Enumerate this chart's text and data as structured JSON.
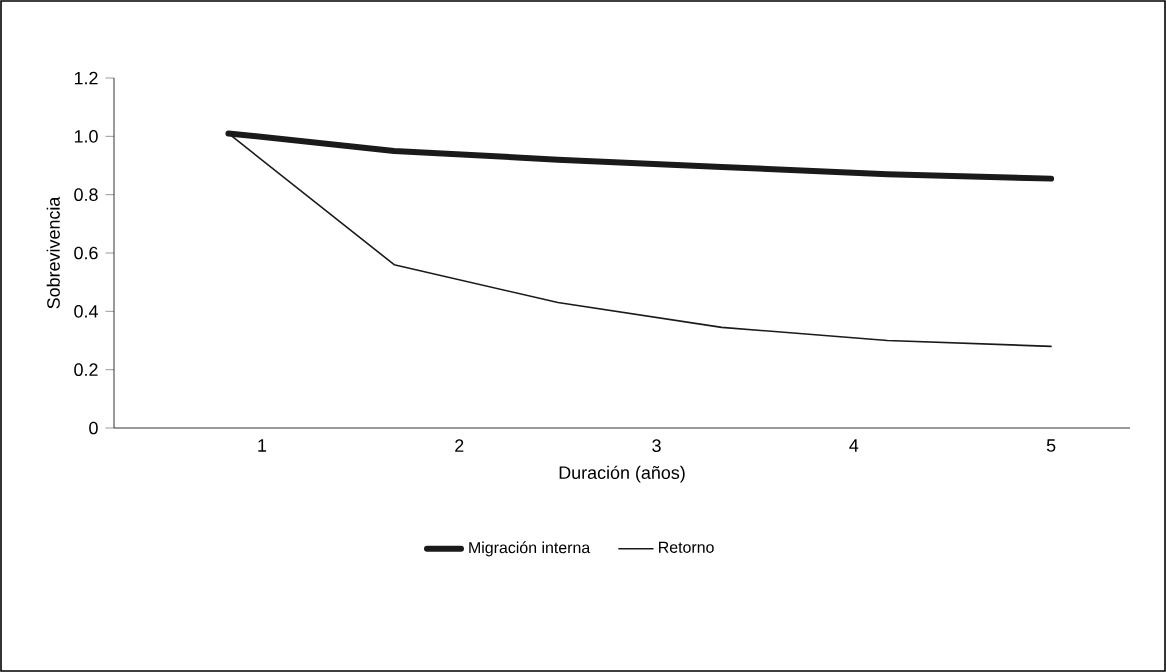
{
  "chart_data": {
    "type": "line",
    "xlabel": "Duración (años)",
    "ylabel": "Sobrevivencia",
    "x": [
      0.83,
      1.67,
      2.5,
      3.33,
      4.17,
      5
    ],
    "xlim": [
      0.25,
      5.4
    ],
    "xticks": [
      1,
      2,
      3,
      4,
      5
    ],
    "ylim": [
      0,
      1.2
    ],
    "yticks": [
      0,
      {
        "value": 0.2,
        "label": "0.2"
      },
      {
        "value": 0.4,
        "label": "0.4"
      },
      {
        "value": 0.6,
        "label": "0.6"
      },
      {
        "value": 0.8,
        "label": "0.8"
      },
      {
        "value": 1.0,
        "label": "1.0"
      },
      {
        "value": 1.2,
        "label": "1.2"
      }
    ],
    "series": [
      {
        "name": "Migración interna",
        "color": "#1a1a1a",
        "values": [
          1.01,
          0.95,
          0.92,
          0.895,
          0.87,
          0.855
        ]
      },
      {
        "name": "Retorno",
        "color": "#1a1a1a",
        "values": [
          1.01,
          0.56,
          0.43,
          0.345,
          0.3,
          0.28
        ]
      }
    ],
    "legend": "bottom",
    "grid": false,
    "marker": "none",
    "line_style": "solid"
  }
}
